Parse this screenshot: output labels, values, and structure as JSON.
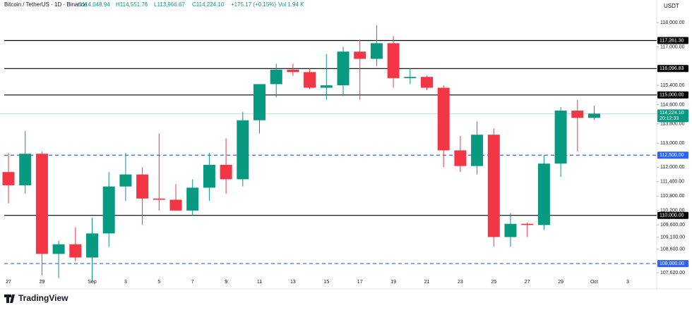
{
  "header": {
    "symbol": "Bitcoin / TetherUS · 1D · Binance",
    "open": "O114,048.94",
    "high": "H114,551.76",
    "low": "L113,966.67",
    "close": "C114,224.10",
    "change": "+175.17 (+0.15%)",
    "volume": "Vol 1.94 K"
  },
  "brand": "TradingView",
  "chart_data": {
    "type": "candlestick",
    "currency": "USDT",
    "categories": [
      "27",
      null,
      "29",
      null,
      null,
      "Sep",
      null,
      "3",
      null,
      "5",
      null,
      "7",
      null,
      "9",
      null,
      "11",
      null,
      "13",
      null,
      "15",
      null,
      "17",
      null,
      "19",
      null,
      "21",
      null,
      "23",
      null,
      "25",
      null,
      "27",
      null,
      "29",
      null,
      "Oct",
      null,
      "3"
    ],
    "open": [
      111800,
      111250,
      112560,
      108400,
      108800,
      108250,
      109250,
      111200,
      111700,
      110700,
      110650,
      110200,
      111150,
      112100,
      111500,
      113950,
      115450,
      116050,
      115950,
      115300,
      115400,
      116800,
      116500,
      117150,
      115700,
      115750,
      115300,
      112700,
      112050,
      113350,
      109100,
      109650,
      109600,
      112150,
      114350,
      114048.94,
      null,
      null
    ],
    "high": [
      112600,
      113500,
      112650,
      108950,
      109500,
      109900,
      111800,
      112600,
      112000,
      113400,
      111300,
      111500,
      112600,
      113200,
      114300,
      115450,
      116300,
      116300,
      116100,
      116700,
      117000,
      117300,
      117900,
      117450,
      116100,
      115800,
      115400,
      113300,
      113900,
      113600,
      110100,
      109700,
      112500,
      114500,
      114800,
      114551.76,
      null,
      null
    ],
    "low": [
      110500,
      110900,
      107500,
      107400,
      108100,
      107300,
      108700,
      110600,
      109600,
      110200,
      110200,
      110000,
      110600,
      110900,
      111200,
      113400,
      114900,
      115800,
      115250,
      114800,
      114950,
      114800,
      116200,
      115300,
      115450,
      115200,
      112000,
      111800,
      111700,
      108700,
      108700,
      109100,
      109400,
      111600,
      112650,
      113966.67,
      null,
      null
    ],
    "close": [
      111250,
      112560,
      108400,
      108800,
      108250,
      109250,
      111200,
      111700,
      110700,
      110650,
      110200,
      111150,
      112100,
      111500,
      113950,
      115450,
      116050,
      115950,
      115300,
      115400,
      116800,
      116500,
      117150,
      115700,
      115750,
      115300,
      112700,
      112050,
      113350,
      109100,
      109650,
      109600,
      112150,
      114350,
      114050,
      114224.1,
      null,
      null
    ],
    "up_color": "#089981",
    "down_color": "#f23645",
    "ylim": [
      107300,
      118300
    ],
    "yticks": [
      {
        "value": 118000,
        "label": "118,000.00"
      },
      {
        "value": 117000,
        "label": "117,000.00"
      },
      {
        "value": 115400,
        "label": "115,400.00"
      },
      {
        "value": 114600,
        "label": "114,600.00"
      },
      {
        "value": 113800,
        "label": "113,800.00"
      },
      {
        "value": 113000,
        "label": "113,000.00"
      },
      {
        "value": 112000,
        "label": "112,000.00"
      },
      {
        "value": 111400,
        "label": "111,400.00"
      },
      {
        "value": 110800,
        "label": "110,800.00"
      },
      {
        "value": 110200,
        "label": "110,200.00"
      },
      {
        "value": 109600,
        "label": "109,600.00"
      },
      {
        "value": 109100,
        "label": "109,100.00"
      },
      {
        "value": 108600,
        "label": "108,600.00"
      },
      {
        "value": 107620,
        "label": "107,620.00"
      }
    ],
    "levels": [
      {
        "value": 117261.3,
        "label": "117,261.30",
        "style": "solid",
        "color": "#000000"
      },
      {
        "value": 116096.83,
        "label": "116,096.83",
        "style": "solid",
        "color": "#000000"
      },
      {
        "value": 115000,
        "label": "115,000.00",
        "style": "solid",
        "color": "#000000"
      },
      {
        "value": 112500,
        "label": "112,500.00",
        "style": "dashed",
        "color": "#2962ff"
      },
      {
        "value": 110000,
        "label": "110,000.00",
        "style": "solid",
        "color": "#000000"
      },
      {
        "value": 108000,
        "label": "108,000.00",
        "style": "dashed",
        "color": "#2962ff"
      }
    ],
    "last_price": {
      "value": 114224.1,
      "label": "114,224.10",
      "countdown": "20:12:33",
      "color": "#089981"
    },
    "grid": false
  }
}
